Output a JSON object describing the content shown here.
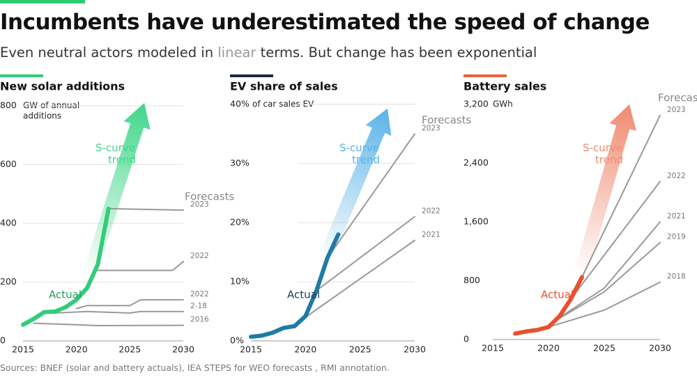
{
  "header": {
    "title": "Incumbents have underestimated the speed of change",
    "subtitle": [
      "Even neutral actors modeled in ",
      "linear",
      " terms. But change has been exponential"
    ],
    "subtitle_highlight_color": "#999999"
  },
  "chart_data": [
    {
      "type": "line",
      "title": "New solar additions",
      "accent_color": "#2ecc71",
      "unit_label": [
        "GW of annual",
        "additions"
      ],
      "xlim": [
        2015,
        2030
      ],
      "xticks": [
        2015,
        2020,
        2025,
        2030
      ],
      "ylim": [
        0,
        800
      ],
      "yticks": [
        0,
        200,
        400,
        600,
        800
      ],
      "grid": true,
      "s_curve_label": [
        "S-curve",
        "trend"
      ],
      "trend_color": "#3fd68a",
      "forecasts_label": "Forecasts",
      "actual_label_color": "#1f9e5a",
      "series": [
        {
          "name": "Actual",
          "color": "#33cc7a",
          "x": [
            2015,
            2016,
            2017,
            2018,
            2019,
            2020,
            2021,
            2022,
            2023
          ],
          "values": [
            55,
            75,
            98,
            100,
            115,
            140,
            180,
            260,
            450
          ]
        },
        {
          "name": "2023",
          "color": "#999999",
          "x": [
            2023,
            2030
          ],
          "values": [
            450,
            445
          ]
        },
        {
          "name": "2022",
          "color": "#999999",
          "x": [
            2022,
            2029,
            2030
          ],
          "values": [
            240,
            240,
            270
          ]
        },
        {
          "name": "2022",
          "color": "#999999",
          "x": [
            2020,
            2021,
            2025,
            2026,
            2030
          ],
          "values": [
            110,
            120,
            120,
            140,
            140
          ]
        },
        {
          "name": "2-18",
          "color": "#999999",
          "x": [
            2018,
            2021,
            2025,
            2026,
            2030
          ],
          "values": [
            95,
            100,
            95,
            100,
            100
          ]
        },
        {
          "name": "2016",
          "color": "#999999",
          "x": [
            2016,
            2020,
            2022,
            2030
          ],
          "values": [
            60,
            55,
            52,
            53
          ]
        }
      ]
    },
    {
      "type": "line",
      "title": "EV share of sales",
      "accent_color": "#1b2a44",
      "unit_label": [
        "of car sales EV"
      ],
      "xlim": [
        2015,
        2030
      ],
      "xticks": [
        2015,
        2020,
        2025,
        2030
      ],
      "ylim": [
        0,
        40
      ],
      "yticks": [
        {
          "value": 0,
          "label": "0%"
        },
        {
          "value": 10,
          "label": "10%"
        },
        {
          "value": 20,
          "label": "20%"
        },
        {
          "value": 30,
          "label": "30%"
        },
        {
          "value": 40,
          "label": "40%"
        }
      ],
      "grid": true,
      "s_curve_label": [
        "S-curve",
        "trend"
      ],
      "trend_color": "#5bb3e8",
      "forecasts_label": "Forecasts",
      "actual_label_color": "#1b3a5c",
      "series": [
        {
          "name": "Actual",
          "color": "#1f7aa8",
          "x": [
            2015,
            2016,
            2017,
            2018,
            2019,
            2020,
            2021,
            2022,
            2023
          ],
          "values": [
            0.7,
            0.9,
            1.4,
            2.2,
            2.5,
            4.2,
            8.5,
            14,
            18
          ]
        },
        {
          "name": "2023",
          "color": "#999999",
          "x": [
            2022,
            2030
          ],
          "values": [
            14,
            35
          ]
        },
        {
          "name": "2022",
          "color": "#999999",
          "x": [
            2021,
            2030
          ],
          "values": [
            8.5,
            21
          ]
        },
        {
          "name": "2021",
          "color": "#999999",
          "x": [
            2020,
            2030
          ],
          "values": [
            4,
            17
          ]
        }
      ]
    },
    {
      "type": "line",
      "title": "Battery sales",
      "accent_color": "#e8613c",
      "unit_label": [
        "GWh"
      ],
      "xlim": [
        2015,
        2030
      ],
      "xticks": [
        2015,
        2020,
        2025,
        2030
      ],
      "ylim": [
        0,
        3200
      ],
      "yticks": [
        0,
        800,
        {
          "value": 1600,
          "label": "1,600"
        },
        {
          "value": 2400,
          "label": "2,400"
        },
        {
          "value": 3200,
          "label": "3,200"
        }
      ],
      "grid": false,
      "s_curve_label": [
        "S-curve",
        "trend"
      ],
      "trend_color": "#f08a70",
      "forecasts_label": "Forecasts",
      "actual_label_color": "#e8502e",
      "series": [
        {
          "name": "Actual",
          "color": "#e8502e",
          "x": [
            2017,
            2018,
            2019,
            2020,
            2021,
            2022,
            2023
          ],
          "values": [
            80,
            110,
            130,
            170,
            320,
            550,
            850
          ]
        },
        {
          "name": "2023",
          "color": "#999999",
          "x": [
            2023,
            2030
          ],
          "values": [
            850,
            3050
          ]
        },
        {
          "name": "2022",
          "color": "#999999",
          "x": [
            2022,
            2030
          ],
          "values": [
            550,
            2150
          ]
        },
        {
          "name": "2021",
          "color": "#999999",
          "x": [
            2021,
            2025,
            2030
          ],
          "values": [
            300,
            700,
            1600
          ]
        },
        {
          "name": "2019",
          "color": "#999999",
          "x": [
            2020,
            2025,
            2030
          ],
          "values": [
            200,
            650,
            1320
          ]
        },
        {
          "name": "2018",
          "color": "#999999",
          "x": [
            2020,
            2025,
            2030
          ],
          "values": [
            170,
            400,
            780
          ]
        }
      ]
    }
  ],
  "source": "Sources: BNEF (solar and battery actuals), IEA STEPS for WEO forecasts , RMI annotation."
}
